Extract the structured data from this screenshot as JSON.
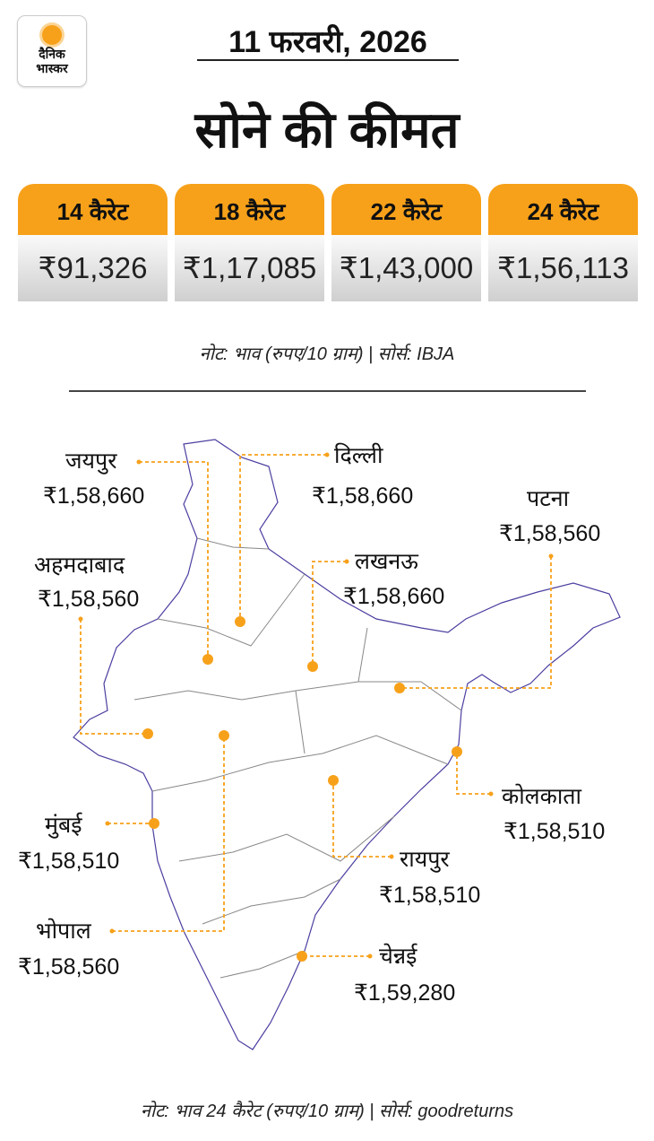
{
  "brand": {
    "logo_text_1": "दैनिक",
    "logo_text_2": "भास्कर",
    "logo_color": "#f7a11a"
  },
  "header": {
    "date": "11 फरवरी, 2026",
    "title": "सोने की कीमत"
  },
  "karat_prices": [
    {
      "label": "14 कैरेट",
      "price": "₹91,326"
    },
    {
      "label": "18 कैरेट",
      "price": "₹1,17,085"
    },
    {
      "label": "22 कैरेट",
      "price": "₹1,43,000"
    },
    {
      "label": "24 कैरेट",
      "price": "₹1,56,113"
    }
  ],
  "note_top": "नोट: भाव (रुपए/10 ग्राम)  |  सोर्स: IBJA",
  "cities": [
    {
      "name": "जयपुर",
      "price": "₹1,58,660"
    },
    {
      "name": "दिल्ली",
      "price": "₹1,58,660"
    },
    {
      "name": "पटना",
      "price": "₹1,58,560"
    },
    {
      "name": "अहमदाबाद",
      "price": "₹1,58,560"
    },
    {
      "name": "लखनऊ",
      "price": "₹1,58,660"
    },
    {
      "name": "कोलकाता",
      "price": "₹1,58,510"
    },
    {
      "name": "मुंबई",
      "price": "₹1,58,510"
    },
    {
      "name": "रायपुर",
      "price": "₹1,58,510"
    },
    {
      "name": "भोपाल",
      "price": "₹1,58,560"
    },
    {
      "name": "चेन्नई",
      "price": "₹1,59,280"
    }
  ],
  "note_bottom": "नोट: भाव 24 कैरेट (रुपए/10 ग्राम)  |  सोर्स: goodreturns",
  "colors": {
    "accent": "#f7a11a",
    "map_outline": "#4b3fa0",
    "map_borders": "#888888"
  }
}
